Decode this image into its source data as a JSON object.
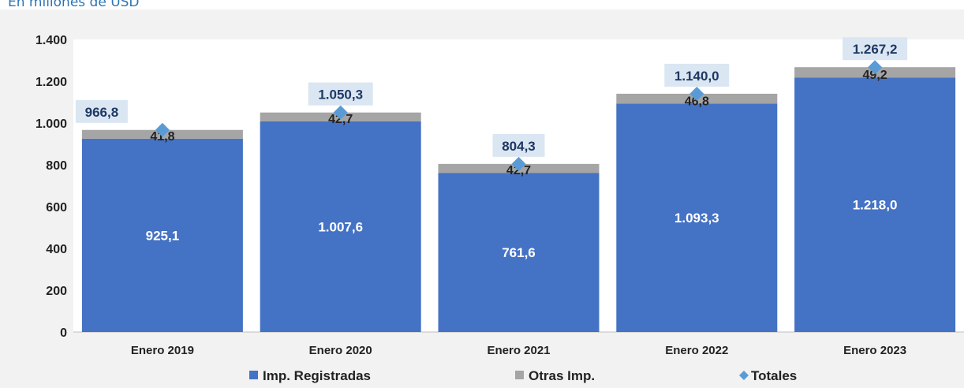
{
  "subtitle": "En millones de USD",
  "colors": {
    "registradas": "#4472c4",
    "otras": "#a5a5a5",
    "totales": "#5b9bd5",
    "total_label_bg": "#dae6f2",
    "plot_bg": "#ffffff",
    "page_bg": "#f2f2f2"
  },
  "chart_data": {
    "type": "bar",
    "stacked": true,
    "categories": [
      "Enero 2019",
      "Enero 2020",
      "Enero 2021",
      "Enero 2022",
      "Enero 2023"
    ],
    "series": [
      {
        "name": "Imp. Registradas",
        "values": [
          925.1,
          1007.6,
          761.6,
          1093.3,
          1218.0
        ],
        "labels": [
          "925,1",
          "1.007,6",
          "761,6",
          "1.093,3",
          "1.218,0"
        ]
      },
      {
        "name": "Otras Imp.",
        "values": [
          41.8,
          42.7,
          42.7,
          46.8,
          49.2
        ],
        "labels": [
          "41,8",
          "42,7",
          "42,7",
          "46,8",
          "49,2"
        ]
      }
    ],
    "totals": {
      "name": "Totales",
      "marker": "diamond",
      "values": [
        966.8,
        1050.3,
        804.3,
        1140.0,
        1267.2
      ],
      "labels": [
        "966,8",
        "1.050,3",
        "804,3",
        "1.140,0",
        "1.267,2"
      ]
    },
    "ylim": [
      0,
      1400
    ],
    "yticks": [
      0,
      200,
      400,
      600,
      800,
      1000,
      1200,
      1400
    ],
    "ytick_labels": [
      "0",
      "200",
      "400",
      "600",
      "800",
      "1.000",
      "1.200",
      "1.400"
    ],
    "legend": {
      "position": "bottom",
      "entries": [
        "Imp. Registradas",
        "Otras Imp.",
        "Totales"
      ]
    },
    "grid": false
  }
}
